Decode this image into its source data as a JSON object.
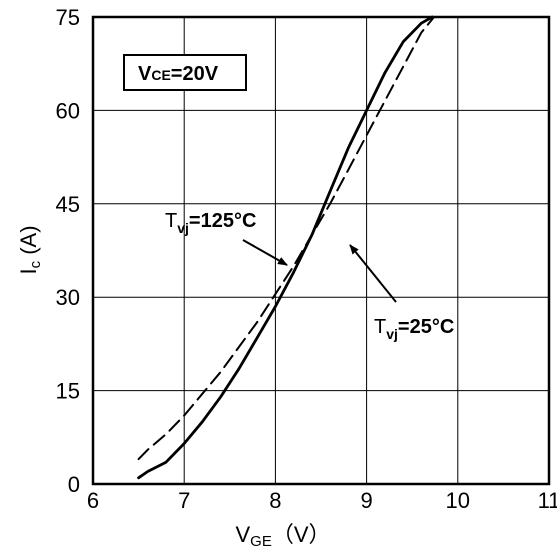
{
  "chart_data": {
    "type": "line",
    "x_ticks": [
      "6",
      "7",
      "8",
      "9",
      "10",
      "11"
    ],
    "y_ticks": [
      "0",
      "15",
      "30",
      "45",
      "60",
      "75"
    ],
    "xlim": [
      6,
      11
    ],
    "ylim": [
      0,
      75
    ],
    "xlabel": {
      "main": "V",
      "sub": "GE",
      "suffix": "（V）"
    },
    "ylabel": {
      "main": "I",
      "sub": "c",
      "suffix": " (A)"
    },
    "grid": true,
    "condition_box": {
      "main": "V",
      "sub": "CE",
      "suffix": "=20V"
    },
    "series": [
      {
        "name": "Tvj=25°C",
        "style": "solid",
        "color": "#000000",
        "label": {
          "main": "T",
          "sub": "vj",
          "suffix": "=25°C"
        },
        "x": [
          6.5,
          6.6,
          6.8,
          7.0,
          7.2,
          7.4,
          7.6,
          7.8,
          8.0,
          8.2,
          8.4,
          8.6,
          8.8,
          9.0,
          9.2,
          9.4,
          9.6,
          9.72
        ],
        "y": [
          1,
          2,
          3.5,
          6.5,
          10,
          14,
          18.5,
          23.5,
          28.5,
          34,
          40,
          47,
          54,
          60,
          66,
          71,
          74,
          75
        ]
      },
      {
        "name": "Tvj=125°C",
        "style": "dashed",
        "color": "#000000",
        "label": {
          "main": "T",
          "sub": "vj",
          "suffix": "=125°C"
        },
        "x": [
          6.5,
          6.6,
          6.8,
          7.0,
          7.2,
          7.4,
          7.6,
          7.8,
          8.0,
          8.2,
          8.4,
          8.6,
          8.8,
          9.0,
          9.2,
          9.4,
          9.6,
          9.74
        ],
        "y": [
          4,
          5.5,
          8,
          11,
          14.5,
          18,
          22,
          26,
          30.5,
          35,
          40,
          45,
          50.5,
          56,
          61.5,
          67,
          72.5,
          75
        ]
      }
    ]
  }
}
